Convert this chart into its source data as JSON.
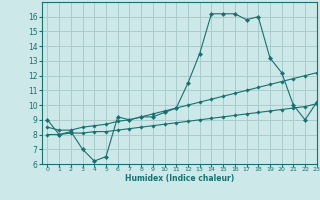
{
  "title": "",
  "xlabel": "Humidex (Indice chaleur)",
  "bg_color": "#cce8e8",
  "grid_color": "#aacccc",
  "line_color": "#1a7070",
  "xlim": [
    -0.5,
    23
  ],
  "ylim": [
    6,
    17
  ],
  "xticks": [
    0,
    1,
    2,
    3,
    4,
    5,
    6,
    7,
    8,
    9,
    10,
    11,
    12,
    13,
    14,
    15,
    16,
    17,
    18,
    19,
    20,
    21,
    22,
    23
  ],
  "yticks": [
    6,
    7,
    8,
    9,
    10,
    11,
    12,
    13,
    14,
    15,
    16
  ],
  "line1_x": [
    0,
    1,
    2,
    3,
    4,
    5,
    6,
    7,
    8,
    9,
    10,
    11,
    12,
    13,
    14,
    15,
    16,
    17,
    18,
    19,
    20,
    21,
    22,
    23
  ],
  "line1_y": [
    9.0,
    8.0,
    8.2,
    7.0,
    6.2,
    6.5,
    9.2,
    9.0,
    9.2,
    9.2,
    9.5,
    9.8,
    11.5,
    13.5,
    16.2,
    16.2,
    16.2,
    15.8,
    16.0,
    13.2,
    12.2,
    10.0,
    9.0,
    10.2
  ],
  "line2_x": [
    0,
    1,
    2,
    3,
    4,
    5,
    6,
    7,
    8,
    9,
    10,
    11,
    12,
    13,
    14,
    15,
    16,
    17,
    18,
    19,
    20,
    21,
    22,
    23
  ],
  "line2_y": [
    8.5,
    8.3,
    8.3,
    8.5,
    8.6,
    8.7,
    8.9,
    9.0,
    9.2,
    9.4,
    9.6,
    9.8,
    10.0,
    10.2,
    10.4,
    10.6,
    10.8,
    11.0,
    11.2,
    11.4,
    11.6,
    11.8,
    12.0,
    12.2
  ],
  "line3_x": [
    0,
    1,
    2,
    3,
    4,
    5,
    6,
    7,
    8,
    9,
    10,
    11,
    12,
    13,
    14,
    15,
    16,
    17,
    18,
    19,
    20,
    21,
    22,
    23
  ],
  "line3_y": [
    8.0,
    8.0,
    8.1,
    8.1,
    8.2,
    8.2,
    8.3,
    8.4,
    8.5,
    8.6,
    8.7,
    8.8,
    8.9,
    9.0,
    9.1,
    9.2,
    9.3,
    9.4,
    9.5,
    9.6,
    9.7,
    9.8,
    9.9,
    10.1
  ]
}
